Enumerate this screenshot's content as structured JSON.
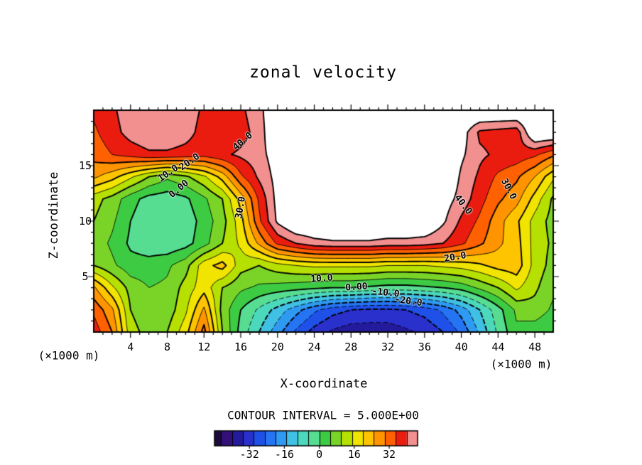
{
  "title": "zonal velocity",
  "axes": {
    "x_label": "X-coordinate",
    "z_label": "Z-coordinate",
    "unit_left": "(×1000 m)",
    "unit_right": "(×1000 m)",
    "x_ticks": [
      4,
      8,
      12,
      16,
      20,
      24,
      28,
      32,
      36,
      40,
      44,
      48
    ],
    "z_ticks": [
      5,
      10,
      15
    ]
  },
  "contour_interval_text": "CONTOUR INTERVAL = 5.000E+00",
  "colorbar": {
    "min": -48,
    "max": 45,
    "ticks": [
      -32,
      -16,
      0,
      16,
      32
    ]
  },
  "chart_data": {
    "type": "heatmap",
    "title": "zonal velocity",
    "xlabel": "X-coordinate (×1000 m)",
    "ylabel": "Z-coordinate (×1000 m)",
    "contour_interval": 5,
    "x_range": [
      0,
      50
    ],
    "z_range": [
      0,
      20
    ],
    "white_above": 45,
    "x": [
      0,
      2,
      4,
      6,
      8,
      10,
      12,
      14,
      16,
      18,
      20,
      22,
      24,
      26,
      28,
      30,
      32,
      34,
      36,
      38,
      40,
      42,
      44,
      46,
      48,
      50
    ],
    "z": [
      20,
      18,
      16,
      14,
      12,
      10,
      8,
      6,
      4,
      2,
      0
    ],
    "values": [
      [
        36,
        39,
        43,
        44,
        44,
        43,
        39,
        36,
        39,
        43,
        52,
        52,
        52,
        52,
        52,
        52,
        52,
        52,
        52,
        52,
        52,
        52,
        52,
        52,
        52,
        52
      ],
      [
        34,
        38,
        42,
        44,
        44,
        42,
        38,
        35,
        38,
        42,
        52,
        52,
        52,
        52,
        52,
        52,
        52,
        52,
        52,
        52,
        48,
        39,
        38,
        37,
        52,
        52
      ],
      [
        32,
        35,
        37,
        39,
        39,
        38,
        37,
        39,
        41,
        43,
        48,
        52,
        52,
        52,
        52,
        52,
        52,
        52,
        52,
        52,
        46,
        41,
        39,
        38,
        36,
        31
      ],
      [
        26,
        22,
        16,
        10,
        6,
        9,
        14,
        22,
        34,
        41,
        47,
        52,
        52,
        52,
        52,
        52,
        52,
        52,
        52,
        52,
        44,
        39,
        34,
        31,
        25,
        16
      ],
      [
        12,
        8,
        2,
        -2,
        -3,
        -1,
        4,
        10,
        22,
        36,
        47,
        52,
        52,
        52,
        52,
        52,
        52,
        52,
        52,
        48,
        43,
        37,
        31,
        27,
        18,
        9
      ],
      [
        10,
        6,
        0,
        -4,
        -5,
        -3,
        2,
        8,
        18,
        34,
        46,
        52,
        52,
        52,
        52,
        52,
        52,
        52,
        52,
        46,
        39,
        34,
        27,
        21,
        13,
        8
      ],
      [
        8,
        4,
        -1,
        -3,
        -4,
        -2,
        3,
        10,
        16,
        26,
        36,
        40,
        43,
        44,
        44,
        44,
        43,
        43,
        42,
        40,
        36,
        31,
        26,
        22,
        13,
        9
      ],
      [
        10,
        6,
        2,
        2,
        4,
        8,
        18,
        22,
        12,
        10,
        13,
        15,
        16,
        16,
        16,
        16,
        15,
        15,
        15,
        16,
        17,
        19,
        22,
        23,
        13,
        8
      ],
      [
        26,
        16,
        8,
        5,
        6,
        12,
        18,
        10,
        6,
        4,
        3,
        2,
        1,
        0,
        0,
        -1,
        -2,
        -2,
        -1,
        0,
        2,
        6,
        10,
        16,
        11,
        6
      ],
      [
        34,
        26,
        10,
        6,
        7,
        14,
        26,
        8,
        0,
        -6,
        -12,
        -18,
        -24,
        -28,
        -30,
        -31,
        -31,
        -30,
        -28,
        -24,
        -18,
        -10,
        -2,
        6,
        8,
        4
      ],
      [
        38,
        30,
        12,
        8,
        10,
        18,
        32,
        10,
        -2,
        -10,
        -18,
        -26,
        -32,
        -36,
        -38,
        -38,
        -38,
        -36,
        -34,
        -30,
        -24,
        -14,
        -4,
        4,
        2,
        0
      ]
    ],
    "band_edges": [
      -45,
      -40,
      -35,
      -30,
      -25,
      -20,
      -15,
      -10,
      -5,
      0,
      5,
      10,
      15,
      20,
      25,
      30,
      35,
      40,
      45
    ],
    "band_colors": [
      "#1c0a3c",
      "#321078",
      "#241a9c",
      "#2a30cc",
      "#1f50e8",
      "#2474f4",
      "#2f9af2",
      "#3fc0e4",
      "#4cd8bc",
      "#57dd92",
      "#3ecb44",
      "#7ad428",
      "#b6e002",
      "#f0e400",
      "#ffc400",
      "#ff9400",
      "#ff6000",
      "#ea1c10",
      "#f28f8f",
      "#ffffff"
    ],
    "line_color": "#000000",
    "contour_labels": [
      {
        "text": "40.0",
        "x": 16.2,
        "z": 17.2,
        "rot": -40
      },
      {
        "text": "20.0",
        "x": 10.4,
        "z": 15.3,
        "rot": -35
      },
      {
        "text": "10.0",
        "x": 8.1,
        "z": 14.3,
        "rot": -35
      },
      {
        "text": "0.00",
        "x": 9.3,
        "z": 12.9,
        "rot": -40
      },
      {
        "text": "30.0",
        "x": 16.0,
        "z": 11.2,
        "rot": -80
      },
      {
        "text": "40.0",
        "x": 40.2,
        "z": 11.5,
        "rot": 52
      },
      {
        "text": "30.0",
        "x": 45.1,
        "z": 12.9,
        "rot": 62
      },
      {
        "text": "20.0",
        "x": 39.3,
        "z": 6.7,
        "rot": -10
      },
      {
        "text": "10.0",
        "x": 24.8,
        "z": 4.8,
        "rot": -4
      },
      {
        "text": "0.00",
        "x": 28.6,
        "z": 4.05,
        "rot": -4
      },
      {
        "text": "-10.0",
        "x": 31.8,
        "z": 3.5,
        "rot": 6
      },
      {
        "text": "-20.0",
        "x": 34.2,
        "z": 2.75,
        "rot": 8
      }
    ]
  }
}
